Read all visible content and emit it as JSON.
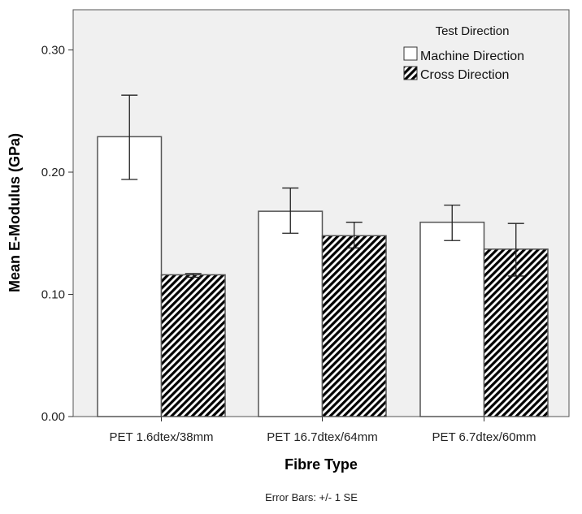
{
  "chart_data": {
    "type": "bar",
    "title": "",
    "xlabel": "Fibre Type",
    "ylabel": "Mean E-Modulus (GPa)",
    "ylim": [
      0,
      0.333
    ],
    "yticks": [
      "0.00",
      "0.10",
      "0.20",
      "0.30"
    ],
    "ytick_values": [
      0,
      0.1,
      0.2,
      0.3
    ],
    "grid": false,
    "categories": [
      "PET 1.6dtex/38mm",
      "PET 16.7dtex/64mm",
      "PET 6.7dtex/60mm"
    ],
    "legend": {
      "title": "Test Direction",
      "placement": "top-right"
    },
    "series": [
      {
        "name": "Machine Direction",
        "fill": "#ffffff",
        "pattern": "none",
        "values": [
          0.229,
          0.168,
          0.159
        ],
        "error_low": [
          0.194,
          0.15,
          0.144
        ],
        "error_high": [
          0.263,
          0.187,
          0.173
        ]
      },
      {
        "name": "Cross Direction",
        "fill": "#000000",
        "pattern": "diagonal-hatch",
        "values": [
          0.116,
          0.148,
          0.137
        ],
        "error_low": [
          0.114,
          0.138,
          0.115
        ],
        "error_high": [
          0.117,
          0.159,
          0.158
        ]
      }
    ],
    "footnote": "Error Bars: +/- 1 SE",
    "colors": {
      "plot_background": "#f0f0f0",
      "axis": "#333333"
    }
  }
}
